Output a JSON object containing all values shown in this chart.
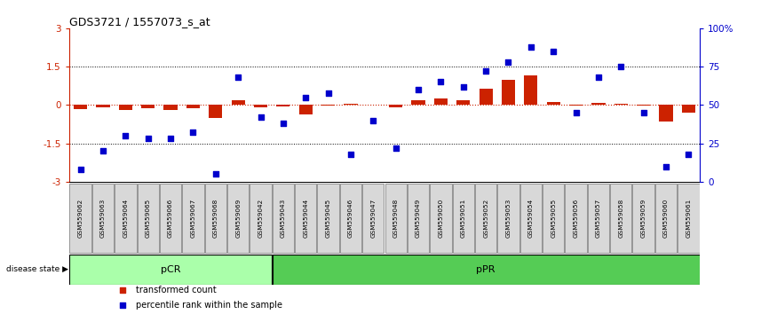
{
  "title": "GDS3721 / 1557073_s_at",
  "samples": [
    "GSM559062",
    "GSM559063",
    "GSM559064",
    "GSM559065",
    "GSM559066",
    "GSM559067",
    "GSM559068",
    "GSM559069",
    "GSM559042",
    "GSM559043",
    "GSM559044",
    "GSM559045",
    "GSM559046",
    "GSM559047",
    "GSM559048",
    "GSM559049",
    "GSM559050",
    "GSM559051",
    "GSM559052",
    "GSM559053",
    "GSM559054",
    "GSM559055",
    "GSM559056",
    "GSM559057",
    "GSM559058",
    "GSM559059",
    "GSM559060",
    "GSM559061"
  ],
  "transformed_count": [
    -0.15,
    -0.1,
    -0.18,
    -0.12,
    -0.18,
    -0.12,
    -0.52,
    0.18,
    -0.1,
    -0.06,
    -0.38,
    -0.04,
    0.04,
    0.02,
    -0.08,
    0.18,
    0.25,
    0.2,
    0.62,
    1.0,
    1.15,
    0.12,
    -0.04,
    0.08,
    0.06,
    -0.04,
    -0.65,
    -0.3
  ],
  "percentile_rank": [
    8,
    20,
    30,
    28,
    28,
    32,
    5,
    68,
    42,
    38,
    55,
    58,
    18,
    40,
    22,
    60,
    65,
    62,
    72,
    78,
    88,
    85,
    45,
    68,
    75,
    45,
    10,
    18
  ],
  "pCR_samples": 9,
  "pPR_samples": 19,
  "ylim": [
    -3,
    3
  ],
  "right_ylim": [
    0,
    100
  ],
  "bar_color": "#CC2200",
  "dot_color": "#0000CC",
  "pCR_color": "#AAFFAA",
  "pPR_color": "#55CC55",
  "label_bar": "transformed count",
  "label_dot": "percentile rank within the sample",
  "disease_state_label": "disease state"
}
